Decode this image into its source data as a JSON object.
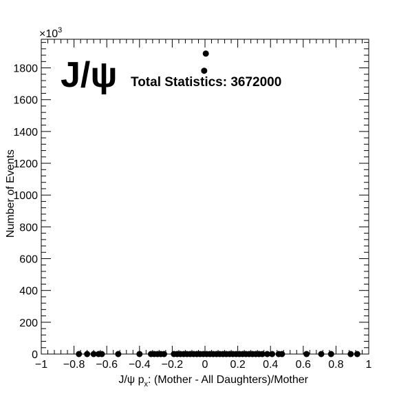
{
  "chart_data": {
    "type": "scatter",
    "marker_color": "#000000",
    "big_label": "J/ψ",
    "stats_label": "Total Statistics: 3672000",
    "xlabel": "J/ψ p",
    "xlabel_sub": "x",
    "xlabel_rest": ": (Mother - All Daughters)/Mother",
    "ylabel": "Number of Events",
    "y_multiplier_base": "×10",
    "y_multiplier_exp": "3",
    "xlim": [
      -1,
      1
    ],
    "ylim": [
      0,
      1980
    ],
    "x_ticks": [
      -1,
      -0.8,
      -0.6,
      -0.4,
      -0.2,
      0,
      0.2,
      0.4,
      0.6,
      0.8,
      1
    ],
    "x_tick_labels": [
      "−1",
      "−0.8",
      "−0.6",
      "−0.4",
      "−0.2",
      "0",
      "0.2",
      "0.4",
      "0.6",
      "0.8",
      "1"
    ],
    "y_ticks": [
      0,
      200,
      400,
      600,
      800,
      1000,
      1200,
      1400,
      1600,
      1800
    ],
    "y_tick_labels": [
      "0",
      "200",
      "400",
      "600",
      "800",
      "1000",
      "1200",
      "1400",
      "1600",
      "1800"
    ],
    "points": [
      {
        "x": 0.005,
        "y": 1890
      },
      {
        "x": -0.005,
        "y": 1782
      },
      {
        "x": -0.77,
        "y": 0
      },
      {
        "x": -0.72,
        "y": 0
      },
      {
        "x": -0.68,
        "y": 0
      },
      {
        "x": -0.65,
        "y": 0
      },
      {
        "x": -0.63,
        "y": 0
      },
      {
        "x": -0.53,
        "y": 0
      },
      {
        "x": -0.4,
        "y": 0
      },
      {
        "x": -0.33,
        "y": 0
      },
      {
        "x": -0.31,
        "y": 0
      },
      {
        "x": -0.29,
        "y": 0
      },
      {
        "x": -0.27,
        "y": 0
      },
      {
        "x": -0.25,
        "y": 0
      },
      {
        "x": -0.19,
        "y": 0
      },
      {
        "x": -0.17,
        "y": 0
      },
      {
        "x": -0.15,
        "y": 0
      },
      {
        "x": -0.13,
        "y": 0
      },
      {
        "x": -0.11,
        "y": 0
      },
      {
        "x": -0.09,
        "y": 0
      },
      {
        "x": -0.07,
        "y": 0
      },
      {
        "x": -0.05,
        "y": 0
      },
      {
        "x": -0.03,
        "y": 0
      },
      {
        "x": -0.01,
        "y": 0
      },
      {
        "x": 0.01,
        "y": 0
      },
      {
        "x": 0.03,
        "y": 0
      },
      {
        "x": 0.05,
        "y": 0
      },
      {
        "x": 0.07,
        "y": 0
      },
      {
        "x": 0.09,
        "y": 0
      },
      {
        "x": 0.11,
        "y": 0
      },
      {
        "x": 0.13,
        "y": 0
      },
      {
        "x": 0.15,
        "y": 0
      },
      {
        "x": 0.17,
        "y": 0
      },
      {
        "x": 0.19,
        "y": 0
      },
      {
        "x": 0.21,
        "y": 0
      },
      {
        "x": 0.23,
        "y": 0
      },
      {
        "x": 0.25,
        "y": 0
      },
      {
        "x": 0.27,
        "y": 0
      },
      {
        "x": 0.29,
        "y": 0
      },
      {
        "x": 0.31,
        "y": 0
      },
      {
        "x": 0.33,
        "y": 0
      },
      {
        "x": 0.35,
        "y": 0
      },
      {
        "x": 0.38,
        "y": 0
      },
      {
        "x": 0.41,
        "y": 0
      },
      {
        "x": 0.45,
        "y": 0
      },
      {
        "x": 0.47,
        "y": 0
      },
      {
        "x": 0.62,
        "y": 0
      },
      {
        "x": 0.71,
        "y": 0
      },
      {
        "x": 0.77,
        "y": 0
      },
      {
        "x": 0.89,
        "y": 0
      },
      {
        "x": 0.93,
        "y": 0
      }
    ]
  }
}
